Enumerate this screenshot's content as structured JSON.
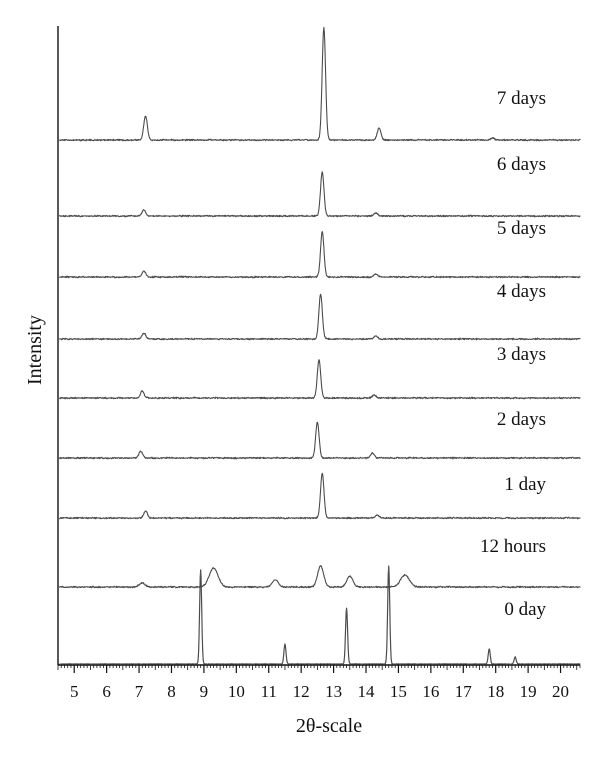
{
  "chart_data": {
    "type": "line",
    "title": "",
    "xlabel": "2θ-scale",
    "ylabel": "Intensity",
    "xlim": [
      4.5,
      20.6
    ],
    "xticks": [
      5,
      6,
      7,
      8,
      9,
      10,
      11,
      12,
      13,
      14,
      15,
      16,
      17,
      18,
      19,
      20
    ],
    "grid": false,
    "legend": "none",
    "y_axis_ticks": false,
    "curve_colors": {
      "primary": "#333333",
      "secondary": "#777777"
    },
    "series": [
      {
        "name": "7 days",
        "peaks": [
          {
            "x": 7.2,
            "y": 24
          },
          {
            "x": 12.7,
            "y": 112
          },
          {
            "x": 14.4,
            "y": 12
          },
          {
            "x": 17.9,
            "y": 2
          }
        ]
      },
      {
        "name": "6 days",
        "peaks": [
          {
            "x": 7.15,
            "y": 6
          },
          {
            "x": 12.65,
            "y": 44
          },
          {
            "x": 14.3,
            "y": 3
          }
        ]
      },
      {
        "name": "5 days",
        "peaks": [
          {
            "x": 7.15,
            "y": 6
          },
          {
            "x": 12.65,
            "y": 45
          },
          {
            "x": 14.3,
            "y": 3
          }
        ]
      },
      {
        "name": "4 days",
        "peaks": [
          {
            "x": 7.15,
            "y": 6
          },
          {
            "x": 12.6,
            "y": 45
          },
          {
            "x": 14.3,
            "y": 3
          }
        ]
      },
      {
        "name": "3 days",
        "peaks": [
          {
            "x": 7.1,
            "y": 7
          },
          {
            "x": 12.55,
            "y": 38
          },
          {
            "x": 14.25,
            "y": 3
          }
        ]
      },
      {
        "name": "2 days",
        "peaks": [
          {
            "x": 7.05,
            "y": 7
          },
          {
            "x": 12.5,
            "y": 36
          },
          {
            "x": 14.2,
            "y": 5
          }
        ]
      },
      {
        "name": "1 day",
        "peaks": [
          {
            "x": 7.2,
            "y": 7
          },
          {
            "x": 12.65,
            "y": 45
          },
          {
            "x": 14.35,
            "y": 3
          }
        ]
      },
      {
        "name": "12 hours",
        "peaks": [
          {
            "x": 7.1,
            "y": 4
          },
          {
            "x": 9.3,
            "y": 19
          },
          {
            "x": 11.2,
            "y": 7
          },
          {
            "x": 12.6,
            "y": 21
          },
          {
            "x": 13.5,
            "y": 11
          },
          {
            "x": 15.2,
            "y": 12
          }
        ]
      },
      {
        "name": "0 day",
        "peaks": [
          {
            "x": 8.9,
            "y": 94
          },
          {
            "x": 11.5,
            "y": 20
          },
          {
            "x": 13.4,
            "y": 56
          },
          {
            "x": 14.7,
            "y": 98
          },
          {
            "x": 17.8,
            "y": 15
          },
          {
            "x": 18.6,
            "y": 7
          }
        ]
      }
    ]
  }
}
